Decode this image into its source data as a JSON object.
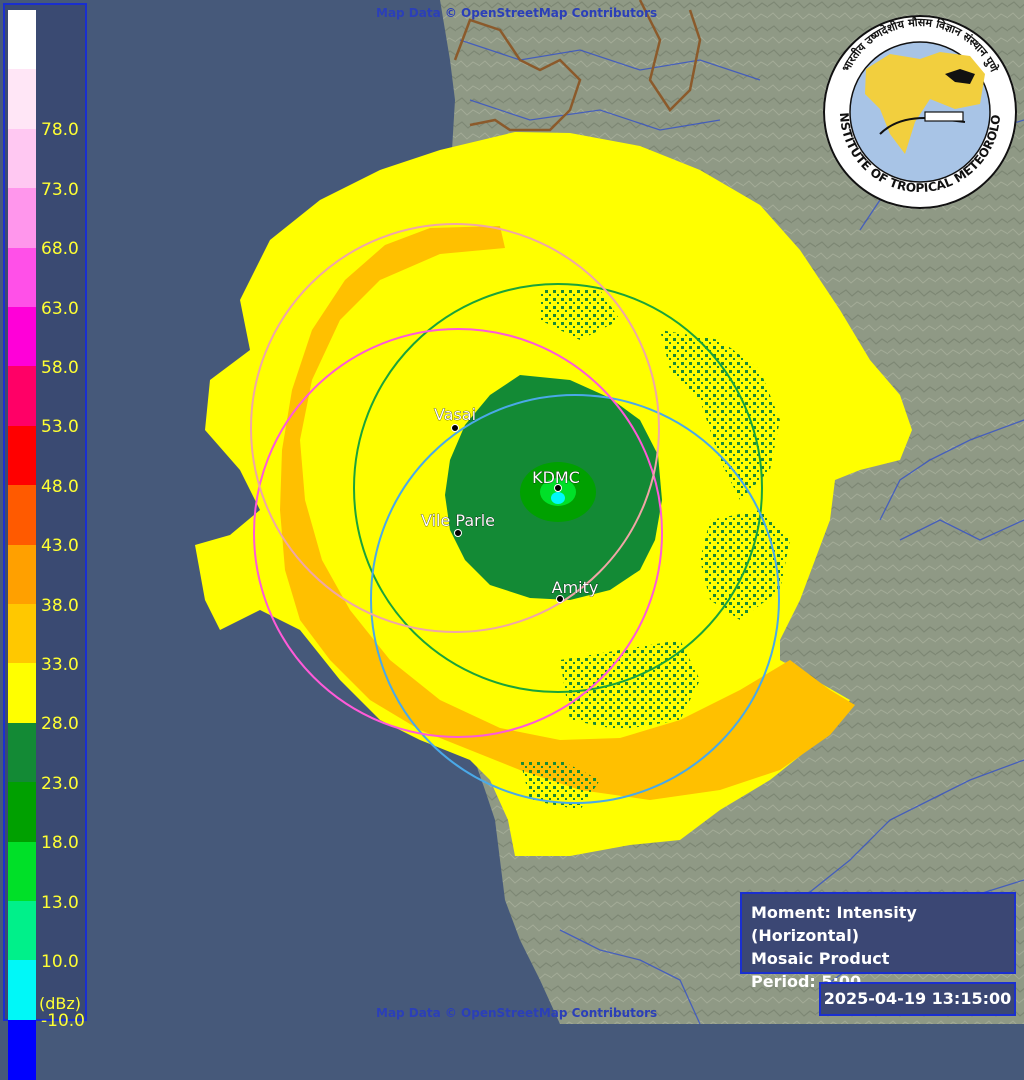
{
  "attribution": "Map Data © OpenStreetMap Contributors",
  "legend": {
    "unit": "(dBz)",
    "bands": [
      {
        "color": "#ffffff",
        "label": ""
      },
      {
        "color": "#ffe6f6",
        "label": "78.0"
      },
      {
        "color": "#ffc8f2",
        "label": "73.0"
      },
      {
        "color": "#ff96ec",
        "label": "68.0"
      },
      {
        "color": "#ff50e8",
        "label": "63.0"
      },
      {
        "color": "#ff00d8",
        "label": "58.0"
      },
      {
        "color": "#ff0066",
        "label": "53.0"
      },
      {
        "color": "#ff0000",
        "label": "48.0"
      },
      {
        "color": "#ff5a00",
        "label": "43.0"
      },
      {
        "color": "#ffa000",
        "label": "38.0"
      },
      {
        "color": "#ffc800",
        "label": "33.0"
      },
      {
        "color": "#ffff00",
        "label": "28.0"
      },
      {
        "color": "#138a35",
        "label": "23.0"
      },
      {
        "color": "#00a000",
        "label": "18.0"
      },
      {
        "color": "#00e028",
        "label": "13.0"
      },
      {
        "color": "#00f08a",
        "label": "10.0"
      },
      {
        "color": "#00f8f8",
        "label": "-10.0"
      },
      {
        "color": "#0000ff",
        "label": ""
      }
    ]
  },
  "sites": [
    {
      "name": "Vasai"
    },
    {
      "name": "KDMC"
    },
    {
      "name": "Vile Parle"
    },
    {
      "name": "Amity"
    }
  ],
  "info": {
    "moment": "Moment: Intensity (Horizontal)",
    "product": "Mosaic Product",
    "period": "Period: 5:00"
  },
  "timestamp": "2025-04-19 13:15:00",
  "logo": {
    "outer_text": "INDIAN INSTITUTE OF TROPICAL METEOROLOGY PUNE",
    "top_text": "भारतीय उष्णदेशीय मौसम विज्ञान संस्थान पुणे"
  },
  "colors": {
    "sea": "#46597a",
    "land": "#8e9883",
    "rain_light": "#ffff00",
    "rain_orange": "#ffc000",
    "rain_green": "#138a35",
    "rain_bright": "#00a000",
    "ring_kdmc": "#1aa33a",
    "ring_amity": "#4aa9e8",
    "ring_vileparle": "#ff5ad8",
    "ring_vasai": "#f0a6a6",
    "label_text": "#ffffff"
  }
}
